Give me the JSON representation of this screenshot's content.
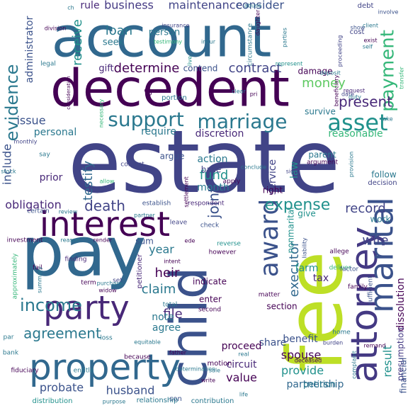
{
  "words": [
    {
      "text": "estate",
      "color": "#414487"
    },
    {
      "text": "fee",
      "color": "#bddf26"
    },
    {
      "text": "pay",
      "color": "#31688e"
    },
    {
      "text": "account",
      "color": "#31688e"
    },
    {
      "text": "decedent",
      "color": "#440154"
    },
    {
      "text": "child",
      "color": "#3b528b"
    },
    {
      "text": "property",
      "color": "#31688e"
    },
    {
      "text": "interest",
      "color": "#440154"
    },
    {
      "text": "attorney",
      "color": "#443983"
    },
    {
      "text": "marital",
      "color": "#3b528b"
    },
    {
      "text": "party",
      "color": "#482878"
    },
    {
      "text": "award",
      "color": "#3b528b"
    },
    {
      "text": "asset",
      "color": "#21918c"
    },
    {
      "text": "marriage",
      "color": "#2a788e"
    },
    {
      "text": "support",
      "color": "#2a788e"
    },
    {
      "text": "evidence",
      "color": "#2a788e"
    },
    {
      "text": "payment",
      "color": "#35b779"
    },
    {
      "text": "income",
      "color": "#2a788e"
    },
    {
      "text": "agreement",
      "color": "#2a788e"
    },
    {
      "text": "expense",
      "color": "#21918c"
    },
    {
      "text": "determine",
      "color": "#440154"
    },
    {
      "text": "business",
      "color": "#443983"
    },
    {
      "text": "maintenance",
      "color": "#414487"
    },
    {
      "text": "consider",
      "color": "#3b528b"
    },
    {
      "text": "contract",
      "color": "#414487"
    },
    {
      "text": "present",
      "color": "#482878"
    },
    {
      "text": "receive",
      "color": "#21918c"
    },
    {
      "text": "administrator",
      "color": "#3b528b"
    },
    {
      "text": "loan",
      "color": "#2a788e"
    },
    {
      "text": "money",
      "color": "#5ec962"
    },
    {
      "text": "fund",
      "color": "#21918c"
    },
    {
      "text": "testify",
      "color": "#31688e"
    },
    {
      "text": "joint",
      "color": "#3b528b"
    },
    {
      "text": "death",
      "color": "#414487"
    },
    {
      "text": "record",
      "color": "#414487"
    },
    {
      "text": "executor",
      "color": "#31688e"
    },
    {
      "text": "wife",
      "color": "#414487"
    },
    {
      "text": "claim",
      "color": "#2a788e"
    },
    {
      "text": "heir",
      "color": "#440154"
    },
    {
      "text": "year",
      "color": "#2a788e"
    },
    {
      "text": "file",
      "color": "#482878"
    },
    {
      "text": "probate",
      "color": "#3b528b"
    },
    {
      "text": "husband",
      "color": "#3b528b"
    },
    {
      "text": "spouse",
      "color": "#440154"
    },
    {
      "text": "provide",
      "color": "#21918c"
    },
    {
      "text": "value",
      "color": "#440154"
    },
    {
      "text": "share",
      "color": "#3b528b"
    },
    {
      "text": "result",
      "color": "#21918c"
    },
    {
      "text": "partnership",
      "color": "#31688e"
    },
    {
      "text": "dissolution",
      "color": "#440154"
    },
    {
      "text": "presumption",
      "color": "#443983"
    },
    {
      "text": "benefit",
      "color": "#3b528b"
    },
    {
      "text": "financial",
      "color": "#3b528b"
    },
    {
      "text": "include",
      "color": "#3b528b"
    },
    {
      "text": "obligation",
      "color": "#482878"
    },
    {
      "text": "issue",
      "color": "#3b528b"
    },
    {
      "text": "personal",
      "color": "#2a788e"
    },
    {
      "text": "require",
      "color": "#2a788e"
    },
    {
      "text": "discretion",
      "color": "#482878"
    },
    {
      "text": "reasonable",
      "color": "#35b779"
    },
    {
      "text": "law",
      "color": "#21918c"
    },
    {
      "text": "service",
      "color": "#414487"
    },
    {
      "text": "month",
      "color": "#2a788e"
    },
    {
      "text": "action",
      "color": "#2a788e"
    },
    {
      "text": "prior",
      "color": "#482878"
    },
    {
      "text": "agree",
      "color": "#2a788e"
    },
    {
      "text": "note",
      "color": "#2a788e"
    },
    {
      "text": "proceed",
      "color": "#440154"
    },
    {
      "text": "circuit",
      "color": "#482878"
    },
    {
      "text": "rule",
      "color": "#482878"
    },
    {
      "text": "person",
      "color": "#2a788e"
    },
    {
      "text": "seek",
      "color": "#2a788e"
    },
    {
      "text": "gift",
      "color": "#482878"
    },
    {
      "text": "contend",
      "color": "#3b528b"
    },
    {
      "text": "damage",
      "color": "#440154"
    },
    {
      "text": "tax",
      "color": "#482878"
    },
    {
      "text": "farm",
      "color": "#21918c"
    },
    {
      "text": "nonmarital",
      "color": "#21918c"
    },
    {
      "text": "section",
      "color": "#440154"
    },
    {
      "text": "enter",
      "color": "#440154"
    },
    {
      "text": "indicate",
      "color": "#440154"
    },
    {
      "text": "give",
      "color": "#21918c"
    },
    {
      "text": "work",
      "color": "#2a788e"
    },
    {
      "text": "follow",
      "color": "#2a788e"
    },
    {
      "text": "decision",
      "color": "#414487"
    },
    {
      "text": "survive",
      "color": "#2a788e"
    },
    {
      "text": "petition",
      "color": "#2a788e"
    },
    {
      "text": "base",
      "color": "#414487"
    },
    {
      "text": "argue",
      "color": "#3b528b"
    },
    {
      "text": "parent",
      "color": "#2a788e"
    },
    {
      "text": "right",
      "color": "#440154"
    },
    {
      "text": "sum",
      "color": "#3b528b"
    },
    {
      "text": "portion",
      "color": "#2a788e"
    },
    {
      "text": "motion",
      "color": "#440154"
    },
    {
      "text": "contribution",
      "color": "#2a788e"
    },
    {
      "text": "son",
      "color": "#3b528b"
    },
    {
      "text": "relationship",
      "color": "#2a788e"
    },
    {
      "text": "distribution",
      "color": "#21918c"
    },
    {
      "text": "petitioner",
      "color": "#482878"
    },
    {
      "text": "debt",
      "color": "#414487"
    },
    {
      "text": "cost",
      "color": "#414487"
    },
    {
      "text": "deposit",
      "color": "#2a788e"
    },
    {
      "text": "request",
      "color": "#482878"
    },
    {
      "text": "date",
      "color": "#414487"
    },
    {
      "text": "argument",
      "color": "#440154"
    },
    {
      "text": "stock",
      "color": "#2a788e"
    },
    {
      "text": "say",
      "color": "#2a788e"
    },
    {
      "text": "contest",
      "color": "#414487"
    },
    {
      "text": "establish",
      "color": "#3b528b"
    },
    {
      "text": "respondent",
      "color": "#482878"
    },
    {
      "text": "check",
      "color": "#3b528b"
    },
    {
      "text": "reverse",
      "color": "#21918c"
    },
    {
      "text": "allege",
      "color": "#440154"
    },
    {
      "text": "deliver",
      "color": "#35b779"
    },
    {
      "text": "family",
      "color": "#440154"
    },
    {
      "text": "factor",
      "color": "#3b528b"
    },
    {
      "text": "sufficient",
      "color": "#3b528b"
    },
    {
      "text": "liability",
      "color": "#3b528b"
    },
    {
      "text": "matter",
      "color": "#440154"
    },
    {
      "text": "second",
      "color": "#440154"
    },
    {
      "text": "total",
      "color": "#2a788e"
    },
    {
      "text": "set",
      "color": "#414487"
    },
    {
      "text": "term",
      "color": "#440154"
    },
    {
      "text": "finding",
      "color": "#482878"
    },
    {
      "text": "investment",
      "color": "#440154"
    },
    {
      "text": "certain",
      "color": "#3b528b"
    },
    {
      "text": "approximately",
      "color": "#35b779"
    },
    {
      "text": "fail",
      "color": "#440154"
    },
    {
      "text": "summary",
      "color": "#2a788e"
    },
    {
      "text": "bank",
      "color": "#2a788e"
    },
    {
      "text": "par",
      "color": "#2a788e"
    },
    {
      "text": "fiduciary",
      "color": "#440154"
    },
    {
      "text": "entitle",
      "color": "#2a788e"
    },
    {
      "text": "because",
      "color": "#440154"
    },
    {
      "text": "however",
      "color": "#440154"
    },
    {
      "text": "home",
      "color": "#2a788e"
    },
    {
      "text": "deceased",
      "color": "#440154"
    },
    {
      "text": "sale",
      "color": "#2a788e"
    },
    {
      "text": "write",
      "color": "#440154"
    },
    {
      "text": "loss",
      "color": "#2a788e"
    },
    {
      "text": "widow",
      "color": "#440154"
    },
    {
      "text": "purchase",
      "color": "#2a788e"
    },
    {
      "text": "intent",
      "color": "#440154"
    },
    {
      "text": "leave",
      "color": "#414487"
    },
    {
      "text": "review",
      "color": "#2a788e"
    },
    {
      "text": "allow",
      "color": "#35b779"
    },
    {
      "text": "apply",
      "color": "#440154"
    },
    {
      "text": "conclude",
      "color": "#2a788e"
    },
    {
      "text": "provision",
      "color": "#2a788e"
    },
    {
      "text": "sign",
      "color": "#414487"
    },
    {
      "text": "legal",
      "color": "#2a788e"
    },
    {
      "text": "division",
      "color": "#440154"
    },
    {
      "text": "insurance",
      "color": "#414487"
    },
    {
      "text": "testimony",
      "color": "#35b779"
    },
    {
      "text": "circumstance",
      "color": "#2a788e"
    },
    {
      "text": "represent",
      "color": "#21918c"
    },
    {
      "text": "consideration",
      "color": "#440154"
    },
    {
      "text": "clear",
      "color": "#2a788e"
    },
    {
      "text": "pri",
      "color": "#440154"
    },
    {
      "text": "duty",
      "color": "#2a788e"
    },
    {
      "text": "beneficiary",
      "color": "#440154"
    },
    {
      "text": "take",
      "color": "#2a788e"
    },
    {
      "text": "transfer",
      "color": "#35b779"
    },
    {
      "text": "proceeding",
      "color": "#414487"
    },
    {
      "text": "exist",
      "color": "#440154"
    },
    {
      "text": "client",
      "color": "#2a788e"
    },
    {
      "text": "involve",
      "color": "#3b528b"
    },
    {
      "text": "abuse",
      "color": "#2a788e"
    },
    {
      "text": "show",
      "color": "#3b528b"
    },
    {
      "text": "daughter",
      "color": "#440154"
    },
    {
      "text": "parties",
      "color": "#2a788e"
    },
    {
      "text": "live",
      "color": "#21918c"
    },
    {
      "text": "incur",
      "color": "#2a788e"
    },
    {
      "text": "necessary",
      "color": "#35b779"
    },
    {
      "text": "monthly",
      "color": "#414487"
    },
    {
      "text": "father",
      "color": "#440154"
    },
    {
      "text": "burden",
      "color": "#414487"
    },
    {
      "text": "remand",
      "color": "#440154"
    },
    {
      "text": "complaint",
      "color": "#2a788e"
    },
    {
      "text": "equitable",
      "color": "#2a788e"
    },
    {
      "text": "determination",
      "color": "#2a788e"
    },
    {
      "text": "real",
      "color": "#2a788e"
    },
    {
      "text": "purpose",
      "color": "#2a788e"
    },
    {
      "text": "life",
      "color": "#2a788e"
    },
    {
      "text": "settlement",
      "color": "#440154"
    },
    {
      "text": "partner",
      "color": "#2a788e"
    },
    {
      "text": "render",
      "color": "#440154"
    },
    {
      "text": "reason",
      "color": "#2a788e"
    },
    {
      "text": "ch",
      "color": "#2a788e"
    },
    {
      "text": "self",
      "color": "#2a788e"
    },
    {
      "text": "%",
      "color": "#440154"
    },
    {
      "text": "ede",
      "color": "#440154"
    }
  ]
}
